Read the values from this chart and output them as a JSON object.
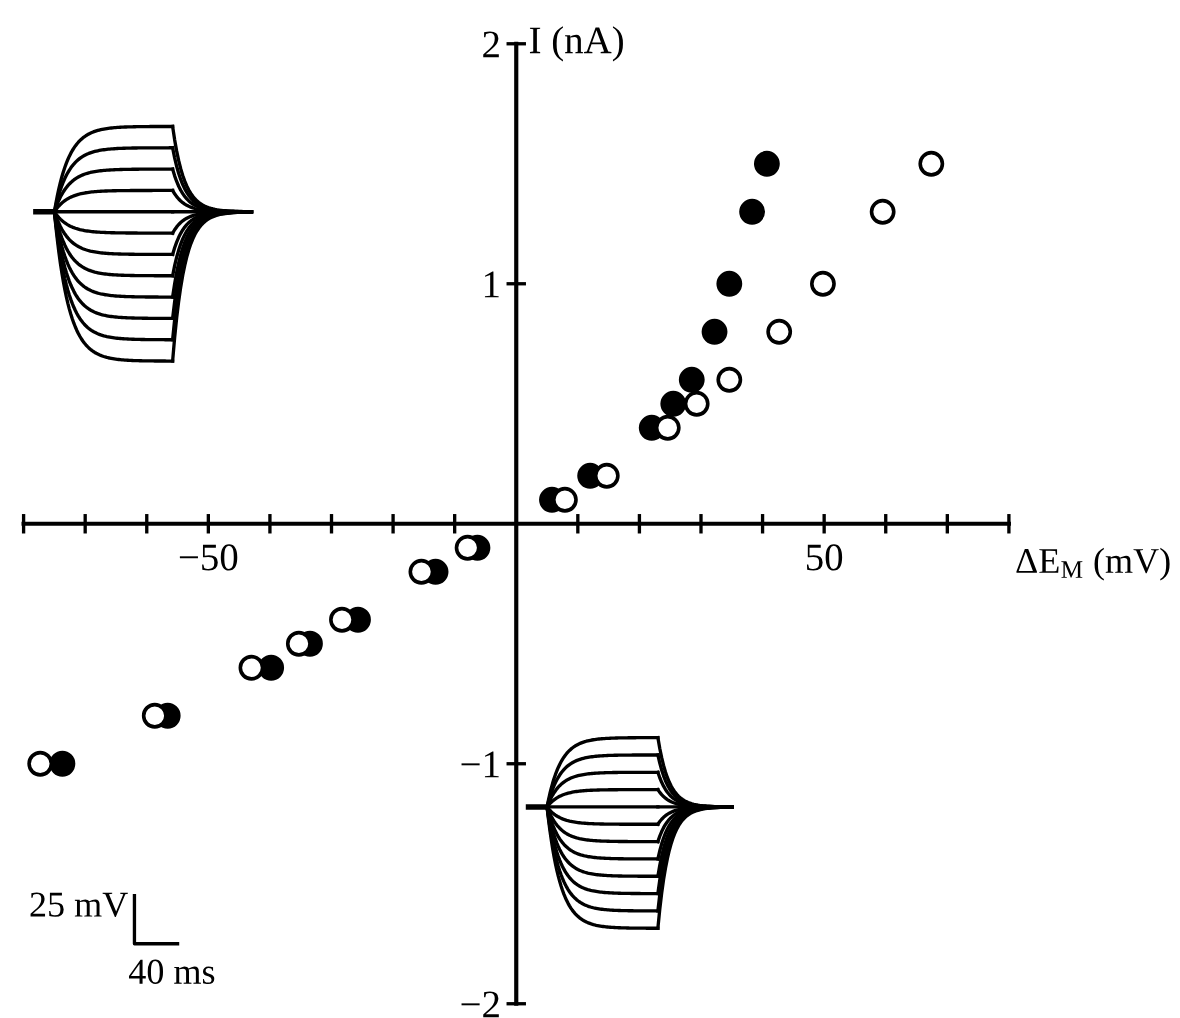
{
  "chart_data": {
    "type": "scatter",
    "xlabel": "ΔE$_{M}$ (mV)",
    "ylabel": "I (nA)",
    "marker": "circle",
    "grid": false,
    "legend": false,
    "xlim": [
      -80,
      80
    ],
    "ylim": [
      -2,
      2
    ],
    "xticks": [
      {
        "value": -80,
        "label": null
      },
      {
        "value": -70,
        "label": null
      },
      {
        "value": -60,
        "label": null
      },
      -50,
      {
        "value": -40,
        "label": null
      },
      {
        "value": -30,
        "label": null
      },
      {
        "value": -20,
        "label": null
      },
      {
        "value": -10,
        "label": null
      },
      {
        "value": 10,
        "label": null
      },
      {
        "value": 20,
        "label": null
      },
      {
        "value": 30,
        "label": null
      },
      {
        "value": 40,
        "label": null
      },
      50,
      {
        "value": 60,
        "label": null
      },
      {
        "value": 70,
        "label": null
      },
      {
        "value": 80,
        "label": null
      }
    ],
    "yticks": [
      -2,
      -1,
      1,
      2
    ],
    "annotations": [
      "25 mV",
      "40 ms"
    ],
    "series": [
      {
        "color": "#000000",
        "x": [
          -73.7,
          -56.6,
          -39.8,
          -33.5,
          -25.7,
          -13.1,
          -6.3,
          5.8,
          12.0,
          22.0,
          25.5,
          28.5,
          32.2,
          34.6,
          38.3,
          40.7
        ],
        "values": [
          -1.0,
          -0.8,
          -0.6,
          -0.5,
          -0.4,
          -0.2,
          -0.1,
          0.1,
          0.2,
          0.4,
          0.5,
          0.6,
          0.8,
          1.0,
          1.3,
          1.5
        ]
      },
      {
        "color": "#ffffff",
        "x": [
          -77.3,
          -58.7,
          -43.0,
          -35.3,
          -28.3,
          -15.4,
          -7.9,
          7.9,
          14.7,
          24.6,
          29.3,
          34.6,
          42.7,
          49.8,
          59.5,
          67.4
        ],
        "values": [
          -1.0,
          -0.8,
          -0.6,
          -0.5,
          -0.4,
          -0.2,
          -0.1,
          0.1,
          0.2,
          0.4,
          0.5,
          0.6,
          0.8,
          1.0,
          1.3,
          1.5
        ]
      }
    ]
  }
}
